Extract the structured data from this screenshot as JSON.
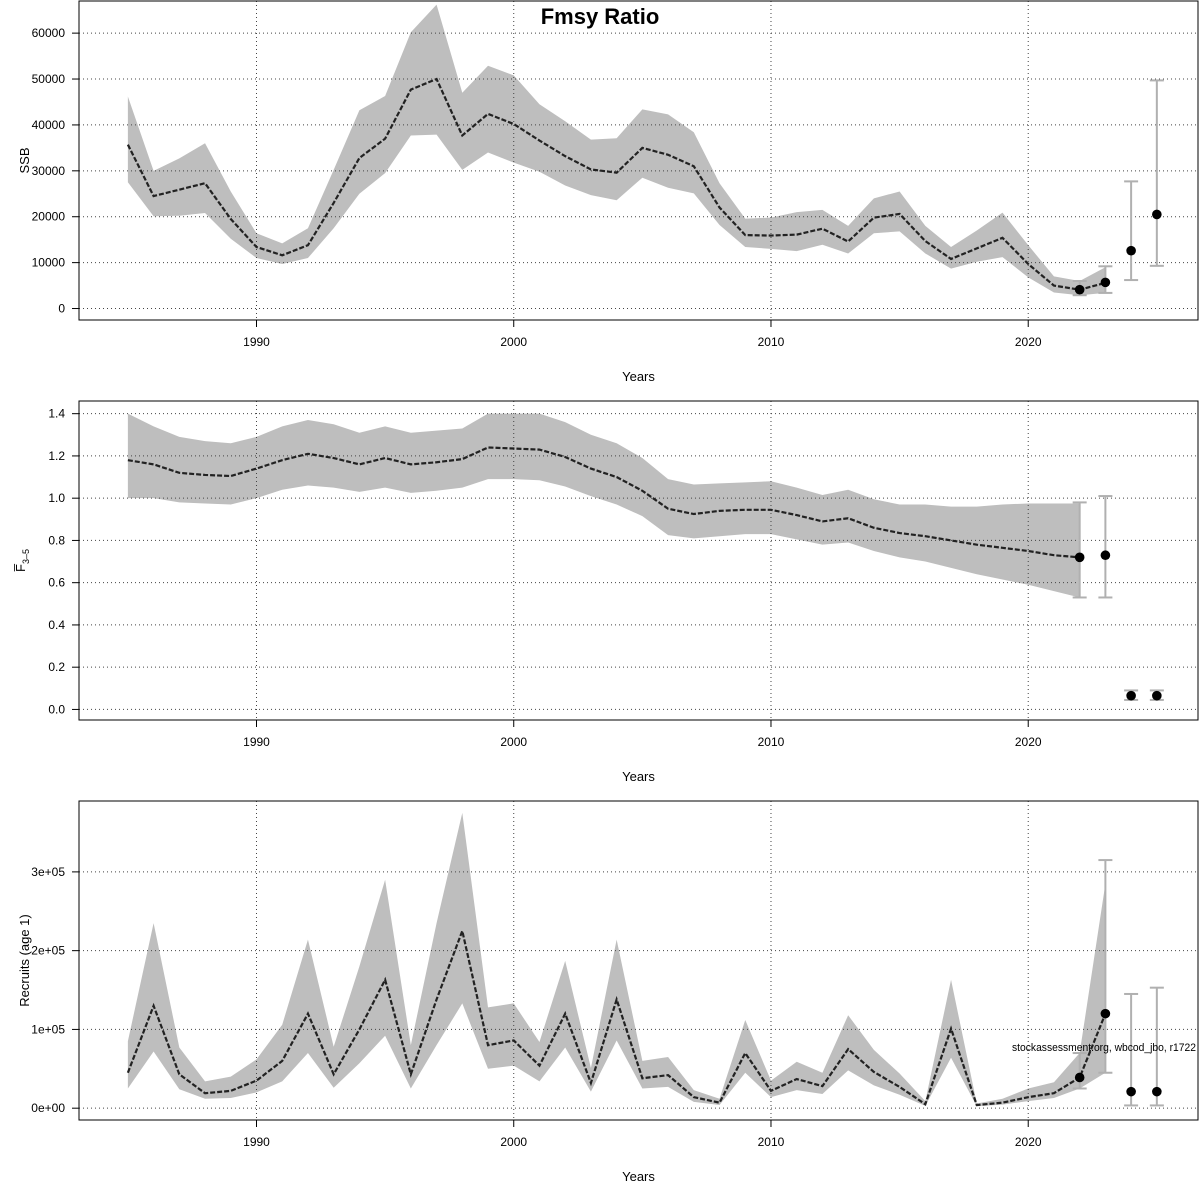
{
  "title": "Fmsy Ratio",
  "watermark": "stockassessment.org, wbcod_jbo, r1722",
  "colors": {
    "band": "#bebebe",
    "line": "#222222",
    "errorbar": "#b0b0b0",
    "point": "#000000",
    "grid": "#444444"
  },
  "chart_data": [
    {
      "type": "line",
      "panel": "ssb",
      "xlabel": "Years",
      "ylabel": "SSB",
      "xlim": [
        1983.1,
        2026.6
      ],
      "ylim": [
        -2500,
        67000
      ],
      "x_ticks": [
        1990,
        2000,
        2010,
        2020
      ],
      "y_ticks": [
        0,
        10000,
        20000,
        30000,
        40000,
        50000,
        60000
      ],
      "y_tick_labels": [
        "0",
        "10000",
        "20000",
        "30000",
        "40000",
        "50000",
        "60000"
      ],
      "grid": true,
      "x": [
        1985,
        1986,
        1987,
        1988,
        1989,
        1990,
        1991,
        1992,
        1993,
        1994,
        1995,
        1996,
        1997,
        1998,
        1999,
        2000,
        2001,
        2002,
        2003,
        2004,
        2005,
        2006,
        2007,
        2008,
        2009,
        2010,
        2011,
        2012,
        2013,
        2014,
        2015,
        2016,
        2017,
        2018,
        2019,
        2020,
        2021,
        2022,
        2023
      ],
      "estimate": [
        35700,
        24500,
        25900,
        27300,
        19500,
        13400,
        11600,
        13800,
        23000,
        32800,
        37000,
        47700,
        50000,
        37700,
        42400,
        40200,
        36600,
        33200,
        30300,
        29600,
        35000,
        33500,
        31000,
        22000,
        16000,
        15900,
        16100,
        17400,
        14600,
        19800,
        20600,
        14700,
        10800,
        13100,
        15400,
        9700,
        5000,
        4100,
        5600
      ],
      "lower": [
        27500,
        20100,
        20200,
        20800,
        15200,
        11000,
        9700,
        11000,
        17500,
        25000,
        29500,
        37700,
        37900,
        30200,
        34000,
        31800,
        29800,
        26800,
        24700,
        23600,
        28500,
        26300,
        25100,
        18200,
        13400,
        13000,
        12500,
        13900,
        12000,
        16400,
        16800,
        12000,
        8700,
        10200,
        11200,
        6800,
        3500,
        2900,
        3400
      ],
      "upper": [
        46200,
        30000,
        32700,
        36000,
        25500,
        16400,
        14200,
        17500,
        30200,
        43200,
        46300,
        60200,
        66200,
        47000,
        52900,
        50800,
        44500,
        40800,
        36800,
        37100,
        43400,
        42300,
        38400,
        27300,
        19600,
        19800,
        21000,
        21500,
        18000,
        24000,
        25500,
        18000,
        13400,
        17000,
        20900,
        13800,
        7000,
        6000,
        9000
      ],
      "errorbars": [
        {
          "x": 2022,
          "value": 4100,
          "lower": 2900,
          "upper": 6000
        },
        {
          "x": 2023,
          "value": 5700,
          "lower": 3400,
          "upper": 9200
        },
        {
          "x": 2024,
          "value": 12600,
          "lower": 6200,
          "upper": 27700
        },
        {
          "x": 2025,
          "value": 20500,
          "lower": 9300,
          "upper": 49700
        }
      ]
    },
    {
      "type": "line",
      "panel": "fbar",
      "xlabel": "Years",
      "ylabel": "F̅",
      "ylabel_sub": "3–5",
      "xlim": [
        1983.1,
        2026.6
      ],
      "ylim": [
        -0.05,
        1.46
      ],
      "x_ticks": [
        1990,
        2000,
        2010,
        2020
      ],
      "y_ticks": [
        0,
        0.2,
        0.4,
        0.6,
        0.8,
        1.0,
        1.2,
        1.4
      ],
      "y_tick_labels": [
        "0.0",
        "0.2",
        "0.4",
        "0.6",
        "0.8",
        "1.0",
        "1.2",
        "1.4"
      ],
      "grid": true,
      "x": [
        1985,
        1986,
        1987,
        1988,
        1989,
        1990,
        1991,
        1992,
        1993,
        1994,
        1995,
        1996,
        1997,
        1998,
        1999,
        2000,
        2001,
        2002,
        2003,
        2004,
        2005,
        2006,
        2007,
        2008,
        2009,
        2010,
        2011,
        2012,
        2013,
        2014,
        2015,
        2016,
        2017,
        2018,
        2019,
        2020,
        2021,
        2022
      ],
      "estimate": [
        1.18,
        1.16,
        1.12,
        1.11,
        1.105,
        1.14,
        1.18,
        1.21,
        1.19,
        1.16,
        1.19,
        1.16,
        1.17,
        1.185,
        1.24,
        1.235,
        1.23,
        1.195,
        1.14,
        1.1,
        1.035,
        0.95,
        0.925,
        0.94,
        0.945,
        0.945,
        0.92,
        0.89,
        0.905,
        0.86,
        0.835,
        0.82,
        0.8,
        0.78,
        0.765,
        0.75,
        0.73,
        0.72
      ],
      "lower": [
        1.0,
        1.0,
        0.98,
        0.975,
        0.97,
        1.0,
        1.04,
        1.06,
        1.05,
        1.03,
        1.05,
        1.025,
        1.035,
        1.05,
        1.09,
        1.09,
        1.085,
        1.055,
        1.01,
        0.97,
        0.915,
        0.825,
        0.81,
        0.82,
        0.83,
        0.83,
        0.805,
        0.78,
        0.79,
        0.75,
        0.72,
        0.7,
        0.67,
        0.64,
        0.615,
        0.59,
        0.56,
        0.53
      ],
      "upper": [
        1.4,
        1.34,
        1.29,
        1.27,
        1.26,
        1.29,
        1.34,
        1.37,
        1.35,
        1.31,
        1.34,
        1.31,
        1.32,
        1.33,
        1.4,
        1.4,
        1.4,
        1.36,
        1.3,
        1.26,
        1.19,
        1.09,
        1.065,
        1.07,
        1.075,
        1.08,
        1.05,
        1.015,
        1.04,
        0.995,
        0.97,
        0.97,
        0.96,
        0.96,
        0.97,
        0.975,
        0.975,
        0.975
      ],
      "errorbars": [
        {
          "x": 2022,
          "value": 0.72,
          "lower": 0.53,
          "upper": 0.98
        },
        {
          "x": 2023,
          "value": 0.73,
          "lower": 0.53,
          "upper": 1.01
        },
        {
          "x": 2024,
          "value": 0.065,
          "lower": 0.045,
          "upper": 0.09
        },
        {
          "x": 2025,
          "value": 0.065,
          "lower": 0.045,
          "upper": 0.09
        }
      ]
    },
    {
      "type": "line",
      "panel": "recruits",
      "xlabel": "Years",
      "ylabel": "Recruits (age 1)",
      "xlim": [
        1983.1,
        2026.6
      ],
      "ylim": [
        -15000,
        390000
      ],
      "x_ticks": [
        1990,
        2000,
        2010,
        2020
      ],
      "y_ticks": [
        0,
        100000,
        200000,
        300000
      ],
      "y_tick_labels": [
        "0e+00",
        "1e+05",
        "2e+05",
        "3e+05"
      ],
      "grid": true,
      "x": [
        1985,
        1986,
        1987,
        1988,
        1989,
        1990,
        1991,
        1992,
        1993,
        1994,
        1995,
        1996,
        1997,
        1998,
        1999,
        2000,
        2001,
        2002,
        2003,
        2004,
        2005,
        2006,
        2007,
        2008,
        2009,
        2010,
        2011,
        2012,
        2013,
        2014,
        2015,
        2016,
        2017,
        2018,
        2019,
        2020,
        2021,
        2022,
        2023
      ],
      "estimate": [
        45000,
        130000,
        43000,
        19000,
        22000,
        35000,
        60000,
        120000,
        43000,
        100000,
        163000,
        43000,
        138000,
        225000,
        80000,
        86000,
        54000,
        120000,
        32000,
        138000,
        38000,
        42000,
        14000,
        7000,
        70000,
        22000,
        37000,
        28000,
        75000,
        46000,
        27000,
        5000,
        101000,
        4000,
        7000,
        14000,
        19000,
        39000,
        120000
      ],
      "lower": [
        25000,
        72000,
        24000,
        12000,
        13000,
        20000,
        34000,
        70000,
        26000,
        57000,
        92000,
        25000,
        80000,
        133000,
        50000,
        54000,
        34000,
        77000,
        21000,
        86000,
        25000,
        27000,
        8000,
        4000,
        45000,
        14000,
        23000,
        18000,
        48000,
        29000,
        17000,
        3000,
        64000,
        2500,
        4500,
        9000,
        13000,
        25000,
        45000
      ],
      "upper": [
        85000,
        235000,
        77000,
        34000,
        40000,
        62000,
        106000,
        214000,
        78000,
        180000,
        290000,
        80000,
        235000,
        375000,
        128000,
        133000,
        84000,
        187000,
        51000,
        214000,
        60000,
        65000,
        23000,
        12000,
        112000,
        35000,
        59000,
        45000,
        118000,
        74000,
        44000,
        9000,
        163000,
        6000,
        12000,
        25000,
        33000,
        70000,
        285000
      ],
      "errorbars": [
        {
          "x": 2022,
          "value": 39000,
          "lower": 25000,
          "upper": 70000
        },
        {
          "x": 2023,
          "value": 120000,
          "lower": 45000,
          "upper": 315000
        },
        {
          "x": 2024,
          "value": 21000,
          "lower": 3500,
          "upper": 145000
        },
        {
          "x": 2025,
          "value": 21000,
          "lower": 3500,
          "upper": 153000
        }
      ]
    }
  ]
}
